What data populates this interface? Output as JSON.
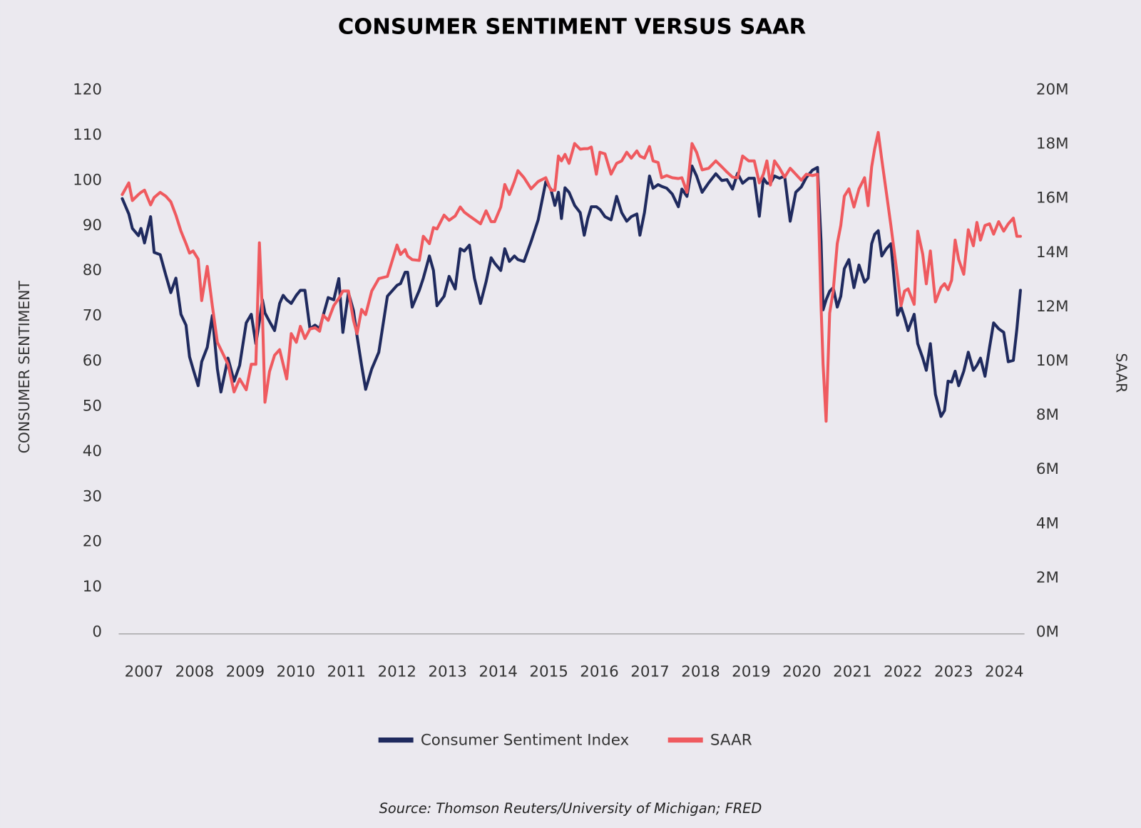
{
  "chart_data": {
    "type": "line",
    "title": "CONSUMER SENTIMENT VERSUS SAAR",
    "ylabel": "CONSUMER SENTIMENT",
    "y2label": "SAAR",
    "source": "Source: Thomson Reuters/University of Michigan; FRED",
    "legend": "bottom",
    "grid": false,
    "xlim": [
      2007,
      2024.9
    ],
    "xticks": [
      2007,
      2008,
      2009,
      2010,
      2011,
      2012,
      2013,
      2014,
      2015,
      2016,
      2017,
      2018,
      2019,
      2020,
      2021,
      2022,
      2023,
      2024
    ],
    "ylim": [
      0,
      120
    ],
    "yticks": [
      0,
      10,
      20,
      30,
      40,
      50,
      60,
      70,
      80,
      90,
      100,
      110,
      120
    ],
    "y2lim": [
      0,
      20000000
    ],
    "y2ticks": [
      {
        "value": 0,
        "label": "0M"
      },
      {
        "value": 2000000,
        "label": "2M"
      },
      {
        "value": 4000000,
        "label": "4M"
      },
      {
        "value": 6000000,
        "label": "6M"
      },
      {
        "value": 8000000,
        "label": "8M"
      },
      {
        "value": 10000000,
        "label": "10M"
      },
      {
        "value": 12000000,
        "label": "12M"
      },
      {
        "value": 14000000,
        "label": "14M"
      },
      {
        "value": 16000000,
        "label": "16M"
      },
      {
        "value": 18000000,
        "label": "18M"
      },
      {
        "value": 20000000,
        "label": "20M"
      }
    ],
    "x": [
      2007.07,
      2007.2,
      2007.27,
      2007.39,
      2007.44,
      2007.51,
      2007.63,
      2007.7,
      2007.82,
      2007.93,
      2008.03,
      2008.13,
      2008.23,
      2008.33,
      2008.4,
      2008.47,
      2008.57,
      2008.64,
      2008.75,
      2008.85,
      2008.95,
      2009.02,
      2009.16,
      2009.28,
      2009.39,
      2009.52,
      2009.62,
      2009.71,
      2009.78,
      2009.84,
      2009.89,
      2009.98,
      2010.08,
      2010.18,
      2010.25,
      2010.32,
      2010.41,
      2010.51,
      2010.59,
      2010.68,
      2010.78,
      2010.88,
      2010.97,
      2011.04,
      2011.14,
      2011.25,
      2011.35,
      2011.43,
      2011.54,
      2011.64,
      2011.71,
      2011.8,
      2011.88,
      2012.0,
      2012.14,
      2012.31,
      2012.5,
      2012.57,
      2012.66,
      2012.71,
      2012.8,
      2012.94,
      2013.02,
      2013.14,
      2013.22,
      2013.29,
      2013.43,
      2013.53,
      2013.65,
      2013.75,
      2013.83,
      2013.93,
      2014.03,
      2014.15,
      2014.26,
      2014.36,
      2014.43,
      2014.55,
      2014.63,
      2014.72,
      2014.82,
      2014.89,
      2015.01,
      2015.15,
      2015.29,
      2015.44,
      2015.54,
      2015.62,
      2015.69,
      2015.75,
      2015.82,
      2015.9,
      2016.01,
      2016.12,
      2016.2,
      2016.27,
      2016.34,
      2016.44,
      2016.51,
      2016.61,
      2016.73,
      2016.84,
      2016.94,
      2017.04,
      2017.13,
      2017.24,
      2017.3,
      2017.39,
      2017.49,
      2017.56,
      2017.66,
      2017.73,
      2017.83,
      2017.94,
      2018.06,
      2018.13,
      2018.23,
      2018.33,
      2018.42,
      2018.53,
      2018.66,
      2018.8,
      2018.92,
      2019.02,
      2019.13,
      2019.23,
      2019.33,
      2019.45,
      2019.56,
      2019.66,
      2019.74,
      2019.81,
      2019.88,
      2019.96,
      2020.06,
      2020.16,
      2020.27,
      2020.38,
      2020.49,
      2020.59,
      2020.71,
      2020.81,
      2020.88,
      2020.92,
      2020.98,
      2021.05,
      2021.12,
      2021.2,
      2021.27,
      2021.34,
      2021.43,
      2021.53,
      2021.63,
      2021.74,
      2021.81,
      2021.88,
      2021.94,
      2022.01,
      2022.08,
      2022.17,
      2022.26,
      2022.39,
      2022.46,
      2022.53,
      2022.6,
      2022.72,
      2022.79,
      2022.89,
      2022.96,
      2023.04,
      2023.14,
      2023.25,
      2023.32,
      2023.39,
      2023.46,
      2023.53,
      2023.6,
      2023.7,
      2023.79,
      2023.89,
      2023.96,
      2024.03,
      2024.12,
      2024.21,
      2024.29,
      2024.39,
      2024.49,
      2024.58,
      2024.68,
      2024.75,
      2024.82
    ],
    "series": [
      {
        "name": "Consumer Sentiment Index",
        "color": "#1f2a5e",
        "values": [
          96.0,
          92.6,
          89.4,
          87.8,
          89.4,
          86.2,
          92.0,
          84.1,
          83.6,
          79.1,
          75.2,
          78.4,
          70.4,
          68.0,
          61.0,
          58.3,
          54.6,
          59.9,
          63.1,
          70.1,
          58.3,
          53.2,
          60.7,
          55.6,
          59.1,
          68.5,
          70.4,
          63.9,
          68.8,
          73.6,
          70.7,
          68.8,
          66.8,
          72.8,
          74.6,
          73.6,
          72.8,
          74.6,
          75.7,
          75.7,
          67.2,
          68.0,
          67.2,
          70.1,
          74.1,
          73.6,
          78.3,
          66.4,
          75.2,
          71.2,
          65.6,
          59.1,
          53.8,
          58.3,
          62.0,
          74.4,
          76.8,
          77.2,
          79.7,
          79.7,
          72.0,
          75.7,
          78.4,
          83.3,
          80.1,
          72.3,
          74.4,
          78.8,
          76.0,
          84.9,
          84.4,
          85.7,
          78.4,
          72.8,
          77.6,
          82.9,
          81.7,
          80.1,
          84.9,
          82.1,
          83.3,
          82.5,
          82.1,
          86.5,
          91.3,
          99.7,
          98.1,
          94.5,
          97.4,
          91.6,
          98.4,
          97.4,
          94.5,
          92.9,
          87.9,
          91.6,
          94.2,
          94.2,
          93.6,
          92.0,
          91.3,
          96.5,
          92.9,
          91.0,
          92.0,
          92.6,
          87.9,
          92.9,
          101.0,
          98.3,
          99.1,
          98.7,
          98.3,
          97.0,
          94.2,
          98.1,
          96.5,
          103.2,
          101.0,
          97.4,
          99.5,
          101.5,
          100.0,
          100.2,
          98.1,
          101.6,
          99.4,
          100.5,
          100.5,
          92.1,
          100.5,
          99.4,
          99.4,
          101.0,
          100.5,
          101.0,
          91.0,
          97.4,
          98.6,
          100.7,
          102.3,
          102.9,
          86.5,
          71.4,
          73.6,
          75.5,
          76.3,
          72.0,
          74.4,
          80.5,
          82.5,
          76.3,
          81.3,
          77.5,
          78.4,
          86.0,
          88.1,
          88.9,
          83.3,
          84.9,
          86.0,
          70.2,
          72.0,
          69.6,
          66.8,
          70.4,
          63.9,
          60.7,
          58.0,
          63.9,
          52.7,
          47.8,
          49.1,
          55.6,
          55.4,
          57.8,
          54.6,
          57.8,
          62.0,
          58.0,
          59.1,
          60.7,
          56.7,
          63.1,
          68.5,
          67.2,
          66.4,
          59.9,
          60.2,
          67.2,
          75.7
        ]
      },
      {
        "name": "SAAR",
        "color": "#ef5a5f",
        "axis": "y2",
        "values": [
          16150000,
          16580000,
          15930000,
          16150000,
          16230000,
          16310000,
          15770000,
          16040000,
          16230000,
          16090000,
          15880000,
          15390000,
          14800000,
          14340000,
          13990000,
          14070000,
          13770000,
          12240000,
          13500000,
          12050000,
          10700000,
          10430000,
          9890000,
          8870000,
          9350000,
          8950000,
          9890000,
          9890000,
          14370000,
          11780000,
          8490000,
          9620000,
          10220000,
          10430000,
          9890000,
          9350000,
          11020000,
          10700000,
          11290000,
          10840000,
          11190000,
          11240000,
          11110000,
          11700000,
          11510000,
          12050000,
          12320000,
          12590000,
          12590000,
          11510000,
          11020000,
          11910000,
          11720000,
          12590000,
          13050000,
          13130000,
          14290000,
          13940000,
          14120000,
          13880000,
          13750000,
          13720000,
          14610000,
          14340000,
          14930000,
          14880000,
          15390000,
          15200000,
          15360000,
          15690000,
          15500000,
          15360000,
          15230000,
          15070000,
          15550000,
          15150000,
          15150000,
          15690000,
          16520000,
          16150000,
          16630000,
          17030000,
          16770000,
          16360000,
          16630000,
          16770000,
          16310000,
          16310000,
          17570000,
          17390000,
          17630000,
          17300000,
          18030000,
          17820000,
          17840000,
          17840000,
          17900000,
          16900000,
          17710000,
          17650000,
          16900000,
          17300000,
          17390000,
          17710000,
          17490000,
          17760000,
          17570000,
          17490000,
          17920000,
          17390000,
          17330000,
          16770000,
          16850000,
          16770000,
          16740000,
          16770000,
          16230000,
          18030000,
          17710000,
          17060000,
          17120000,
          17390000,
          17170000,
          16980000,
          16790000,
          16770000,
          17570000,
          17390000,
          17390000,
          16580000,
          16900000,
          17390000,
          16500000,
          17390000,
          17120000,
          16790000,
          17120000,
          16900000,
          16680000,
          16900000,
          16850000,
          16900000,
          12050000,
          9890000,
          7790000,
          11780000,
          12590000,
          14340000,
          15010000,
          16090000,
          16360000,
          15690000,
          16360000,
          16770000,
          15740000,
          17170000,
          17840000,
          18440000,
          17440000,
          16230000,
          15010000,
          13130000,
          12050000,
          12590000,
          12670000,
          12100000,
          14800000,
          13940000,
          12860000,
          14070000,
          12190000,
          12720000,
          12860000,
          12640000,
          12990000,
          14470000,
          13750000,
          13210000,
          14850000,
          14260000,
          15120000,
          14470000,
          15010000,
          15070000,
          14690000,
          15150000,
          14800000,
          15070000,
          15280000,
          14610000,
          14610000
        ]
      }
    ]
  }
}
